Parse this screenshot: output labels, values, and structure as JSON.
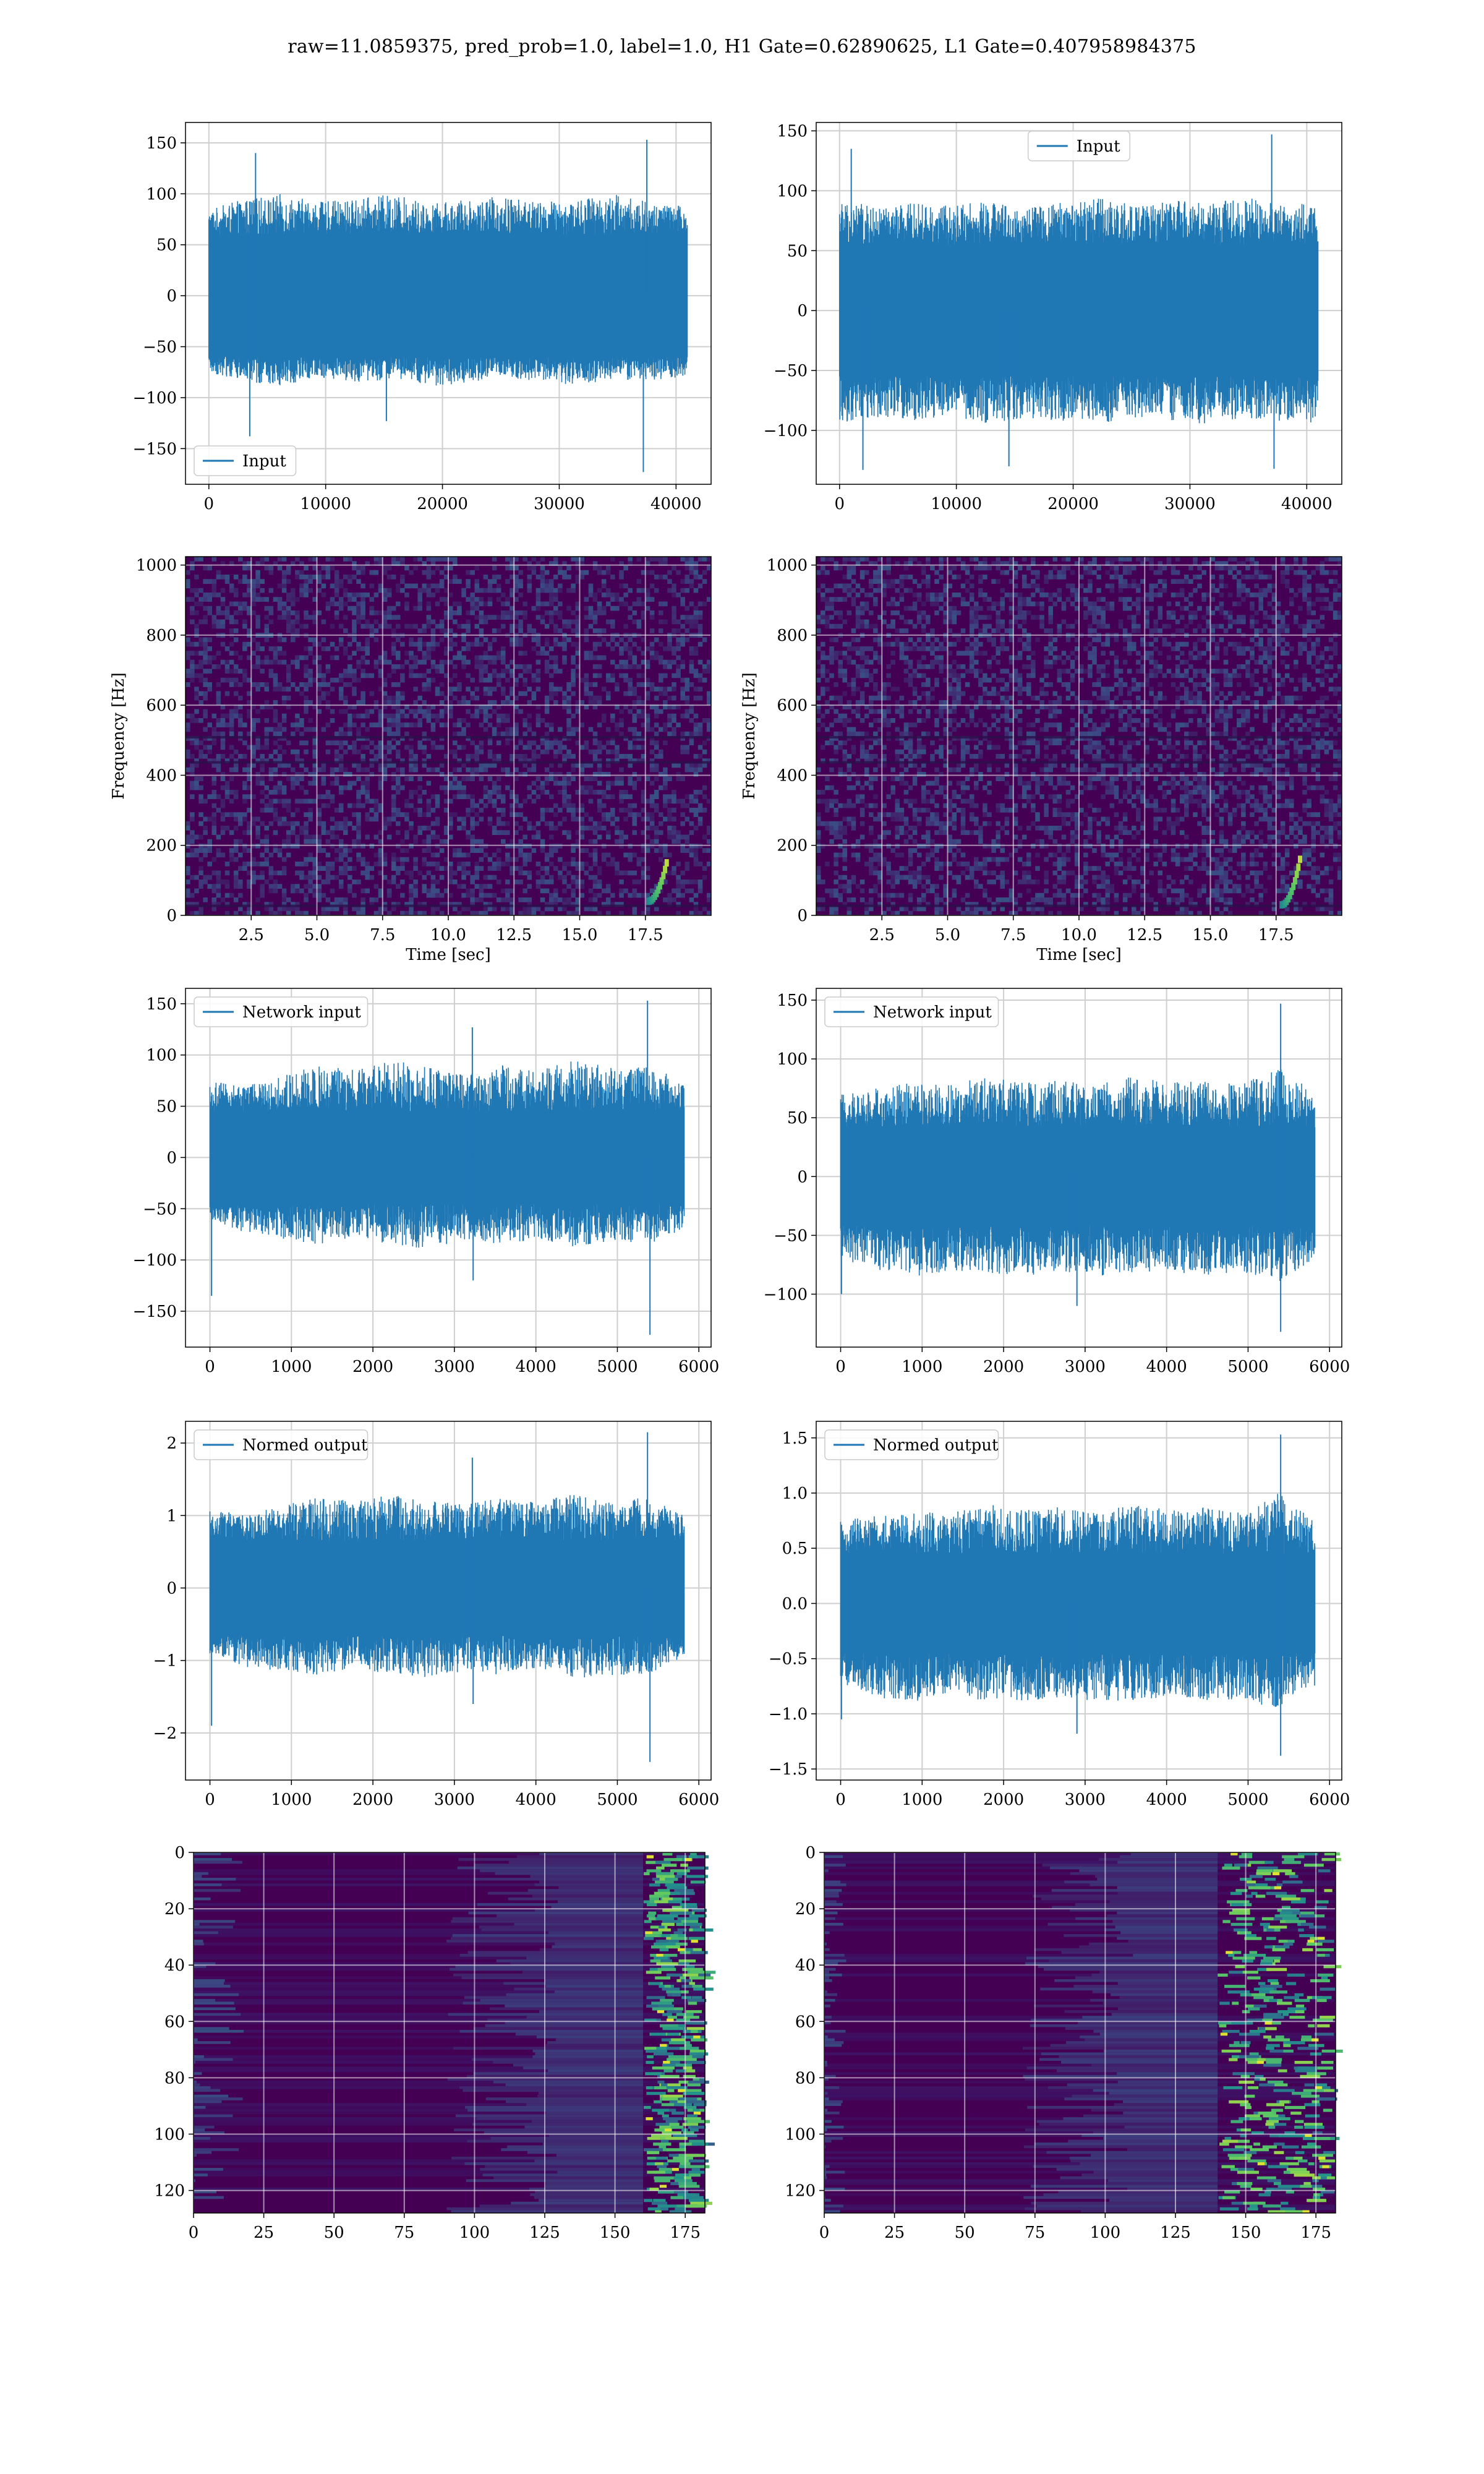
{
  "figure": {
    "suptitle": "raw=11.0859375, pred_prob=1.0, label=1.0, H1 Gate=0.62890625, L1 Gate=0.407958984375"
  },
  "colors": {
    "line": "#1f77b4",
    "grid": "#cfcfcf",
    "viridis_low": "#440154",
    "viridis_mid": "#31688e",
    "viridis_green": "#35b779",
    "viridis_high": "#fde725"
  },
  "chart_data": [
    {
      "id": "input-h1",
      "type": "line",
      "title": "",
      "xlabel": "",
      "ylabel": "",
      "xlim": [
        -2000,
        43000
      ],
      "ylim": [
        -185,
        170
      ],
      "xticks": [
        0,
        10000,
        20000,
        30000,
        40000
      ],
      "yticks": [
        -150,
        -100,
        -50,
        0,
        50,
        100,
        150
      ],
      "legend": "lower left",
      "grid": true,
      "series": [
        {
          "name": "Input",
          "x_range": [
            0,
            40960
          ],
          "envelope": {
            "upper": [
              85,
              95,
              100,
              92,
              95,
              100,
              90,
              95,
              98,
              92,
              95,
              100,
              92,
              88
            ],
            "lower": [
              -75,
              -85,
              -88,
              -80,
              -85,
              -82,
              -90,
              -85,
              -80,
              -85,
              -88,
              -82,
              -85,
              -78
            ],
            "band": [
              60,
              -60
            ]
          },
          "peaks": [
            {
              "x": 4000,
              "y": 140
            },
            {
              "x": 37500,
              "y": 153
            },
            {
              "x": 37200,
              "y": -173
            },
            {
              "x": 3500,
              "y": -138
            },
            {
              "x": 15200,
              "y": -123
            }
          ]
        }
      ]
    },
    {
      "id": "input-l1",
      "type": "line",
      "title": "",
      "xlabel": "",
      "ylabel": "",
      "xlim": [
        -2000,
        43000
      ],
      "ylim": [
        -145,
        157
      ],
      "xticks": [
        0,
        10000,
        20000,
        30000,
        40000
      ],
      "yticks": [
        -100,
        -50,
        0,
        50,
        100,
        150
      ],
      "legend": "upper center",
      "grid": true,
      "series": [
        {
          "name": "Input",
          "x_range": [
            0,
            40960
          ],
          "envelope": {
            "upper": [
              95,
              85,
              90,
              88,
              92,
              85,
              90,
              95,
              88,
              92,
              90,
              95,
              88,
              90
            ],
            "lower": [
              -95,
              -90,
              -92,
              -88,
              -95,
              -90,
              -92,
              -95,
              -90,
              -92,
              -95,
              -90,
              -92,
              -95
            ],
            "band": [
              55,
              -55
            ]
          },
          "peaks": [
            {
              "x": 1000,
              "y": 135
            },
            {
              "x": 37000,
              "y": 147
            },
            {
              "x": 37200,
              "y": -132
            },
            {
              "x": 14500,
              "y": -130
            },
            {
              "x": 2000,
              "y": -133
            }
          ]
        }
      ]
    },
    {
      "id": "spec-h1",
      "type": "heatmap",
      "title": "",
      "xlabel": "Time [sec]",
      "ylabel": "Frequency [Hz]",
      "xlim": [
        0,
        20
      ],
      "ylim": [
        0,
        1024
      ],
      "xticks": [
        2.5,
        5.0,
        7.5,
        10.0,
        12.5,
        15.0,
        17.5
      ],
      "yticks": [
        0,
        200,
        400,
        600,
        800,
        1000
      ],
      "grid": true,
      "colormap": "viridis",
      "chirp": {
        "t_start": 17.6,
        "t_end": 18.3,
        "f_start": 40,
        "f_end": 150
      }
    },
    {
      "id": "spec-l1",
      "type": "heatmap",
      "title": "",
      "xlabel": "Time [sec]",
      "ylabel": "Frequency [Hz]",
      "xlim": [
        0,
        20
      ],
      "ylim": [
        0,
        1024
      ],
      "xticks": [
        2.5,
        5.0,
        7.5,
        10.0,
        12.5,
        15.0,
        17.5
      ],
      "yticks": [
        0,
        200,
        400,
        600,
        800,
        1000
      ],
      "grid": true,
      "colormap": "viridis",
      "chirp": {
        "t_start": 17.7,
        "t_end": 18.4,
        "f_start": 30,
        "f_end": 160
      }
    },
    {
      "id": "netinput-h1",
      "type": "line",
      "title": "",
      "xlabel": "",
      "ylabel": "",
      "xlim": [
        -300,
        6150
      ],
      "ylim": [
        -185,
        165
      ],
      "xticks": [
        0,
        1000,
        2000,
        3000,
        4000,
        5000,
        6000
      ],
      "yticks": [
        -150,
        -100,
        -50,
        0,
        50,
        100,
        150
      ],
      "legend": "upper left",
      "grid": true,
      "series": [
        {
          "name": "Network input",
          "x_range": [
            0,
            5820
          ],
          "envelope": {
            "upper": [
              75,
              70,
              80,
              90,
              85,
              95,
              88,
              80,
              90,
              85,
              95,
              88,
              90,
              75
            ],
            "lower": [
              -60,
              -75,
              -80,
              -85,
              -78,
              -85,
              -90,
              -80,
              -85,
              -80,
              -88,
              -82,
              -85,
              -70
            ],
            "band": [
              45,
              -45
            ]
          },
          "peaks": [
            {
              "x": 5370,
              "y": 153
            },
            {
              "x": 5400,
              "y": -173
            },
            {
              "x": 20,
              "y": -135
            },
            {
              "x": 3230,
              "y": -120
            },
            {
              "x": 3220,
              "y": 127
            }
          ]
        }
      ]
    },
    {
      "id": "netinput-l1",
      "type": "line",
      "title": "",
      "xlabel": "",
      "ylabel": "",
      "xlim": [
        -300,
        6150
      ],
      "ylim": [
        -145,
        160
      ],
      "xticks": [
        0,
        1000,
        2000,
        3000,
        4000,
        5000,
        6000
      ],
      "yticks": [
        -100,
        -50,
        0,
        50,
        100,
        150
      ],
      "legend": "upper left",
      "grid": true,
      "series": [
        {
          "name": "Network input",
          "x_range": [
            0,
            5820
          ],
          "envelope": {
            "upper": [
              70,
              75,
              80,
              78,
              85,
              80,
              82,
              78,
              85,
              80,
              82,
              78,
              95,
              70
            ],
            "lower": [
              -70,
              -80,
              -85,
              -80,
              -82,
              -85,
              -80,
              -85,
              -82,
              -80,
              -85,
              -82,
              -90,
              -70
            ],
            "band": [
              42,
              -42
            ]
          },
          "peaks": [
            {
              "x": 5400,
              "y": 147
            },
            {
              "x": 5400,
              "y": -132
            },
            {
              "x": 10,
              "y": -100
            },
            {
              "x": 2900,
              "y": -110
            }
          ]
        }
      ]
    },
    {
      "id": "normed-h1",
      "type": "line",
      "title": "",
      "xlabel": "",
      "ylabel": "",
      "xlim": [
        -300,
        6150
      ],
      "ylim": [
        -2.65,
        2.3
      ],
      "xticks": [
        0,
        1000,
        2000,
        3000,
        4000,
        5000,
        6000
      ],
      "yticks": [
        -2,
        -1,
        0,
        1,
        2
      ],
      "legend": "upper left",
      "grid": true,
      "series": [
        {
          "name": "Normed output",
          "x_range": [
            0,
            5820
          ],
          "envelope": {
            "upper": [
              1.1,
              1.0,
              1.15,
              1.25,
              1.2,
              1.3,
              1.2,
              1.15,
              1.25,
              1.2,
              1.3,
              1.2,
              1.25,
              1.0
            ],
            "lower": [
              -0.9,
              -1.1,
              -1.15,
              -1.2,
              -1.1,
              -1.2,
              -1.25,
              -1.15,
              -1.2,
              -1.1,
              -1.25,
              -1.2,
              -1.2,
              -0.95
            ],
            "band": [
              0.65,
              -0.65
            ]
          },
          "peaks": [
            {
              "x": 5370,
              "y": 2.15
            },
            {
              "x": 5400,
              "y": -2.4
            },
            {
              "x": 20,
              "y": -1.9
            },
            {
              "x": 3230,
              "y": -1.6
            },
            {
              "x": 3220,
              "y": 1.8
            }
          ]
        }
      ]
    },
    {
      "id": "normed-l1",
      "type": "line",
      "title": "",
      "xlabel": "",
      "ylabel": "",
      "xlim": [
        -300,
        6150
      ],
      "ylim": [
        -1.6,
        1.65
      ],
      "xticks": [
        0,
        1000,
        2000,
        3000,
        4000,
        5000,
        6000
      ],
      "yticks": [
        -1.5,
        -1.0,
        -0.5,
        0.0,
        0.5,
        1.0,
        1.5
      ],
      "legend": "upper left",
      "grid": true,
      "series": [
        {
          "name": "Normed output",
          "x_range": [
            0,
            5820
          ],
          "envelope": {
            "upper": [
              0.75,
              0.8,
              0.85,
              0.82,
              0.9,
              0.85,
              0.88,
              0.82,
              0.9,
              0.85,
              0.88,
              0.82,
              1.0,
              0.75
            ],
            "lower": [
              -0.75,
              -0.85,
              -0.9,
              -0.85,
              -0.88,
              -0.9,
              -0.85,
              -0.9,
              -0.88,
              -0.85,
              -0.9,
              -0.88,
              -0.95,
              -0.75
            ],
            "band": [
              0.45,
              -0.45
            ]
          },
          "peaks": [
            {
              "x": 5400,
              "y": 1.53
            },
            {
              "x": 5400,
              "y": -1.38
            },
            {
              "x": 10,
              "y": -1.05
            },
            {
              "x": 2900,
              "y": -1.18
            }
          ]
        }
      ]
    },
    {
      "id": "feat-h1",
      "type": "heatmap",
      "title": "",
      "xlabel": "",
      "ylabel": "",
      "xlim": [
        0,
        182
      ],
      "ylim": [
        128,
        0
      ],
      "xticks": [
        0,
        25,
        50,
        75,
        100,
        125,
        150,
        175
      ],
      "yticks": [
        0,
        20,
        40,
        60,
        80,
        100,
        120
      ],
      "grid": true,
      "colormap": "viridis",
      "rows": 128,
      "cols": 182,
      "hot_cols": [
        160,
        178
      ],
      "left_glow_cols": [
        0,
        18
      ]
    },
    {
      "id": "feat-l1",
      "type": "heatmap",
      "title": "",
      "xlabel": "",
      "ylabel": "",
      "xlim": [
        0,
        182
      ],
      "ylim": [
        128,
        0
      ],
      "xticks": [
        0,
        25,
        50,
        75,
        100,
        125,
        150,
        175
      ],
      "yticks": [
        0,
        20,
        40,
        60,
        80,
        100,
        120
      ],
      "grid": true,
      "colormap": "viridis",
      "rows": 128,
      "cols": 182,
      "hot_cols": [
        140,
        178
      ],
      "left_glow_cols": [
        0,
        8
      ]
    }
  ]
}
